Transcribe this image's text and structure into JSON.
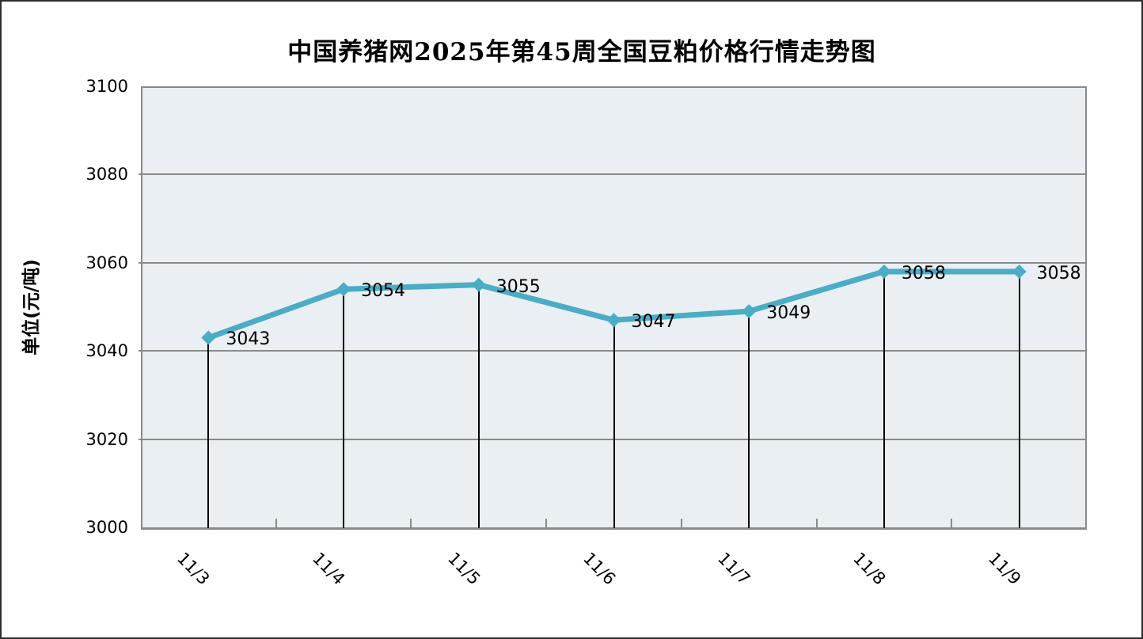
{
  "title": "中国养猪网2025年第45周全国豆粕价格行情走势图",
  "chart_data": {
    "type": "line",
    "title": "中国养猪网2025年第45周全国豆粕价格行情走势图",
    "ylabel": "单位(元/吨)",
    "xlabel": "",
    "categories": [
      "11/3",
      "11/4",
      "11/5",
      "11/6",
      "11/7",
      "11/8",
      "11/9"
    ],
    "values": [
      3043,
      3054,
      3055,
      3047,
      3049,
      3058,
      3058
    ],
    "ylim": [
      3000,
      3100
    ],
    "y_ticks": [
      3000,
      3020,
      3040,
      3060,
      3080,
      3100
    ],
    "grid": "horizontal-major",
    "legend": "none",
    "marker": "diamond",
    "drop_lines": true,
    "colors": {
      "line": "#4BACC6",
      "marker": "#4BACC6",
      "plot_bg": "#E9EFF2",
      "grid": "#8A8A8A",
      "plot_border": "#8A8A8A",
      "drop_line": "#000000",
      "text": "#000000",
      "frame_border": "#2E2E2E"
    }
  }
}
